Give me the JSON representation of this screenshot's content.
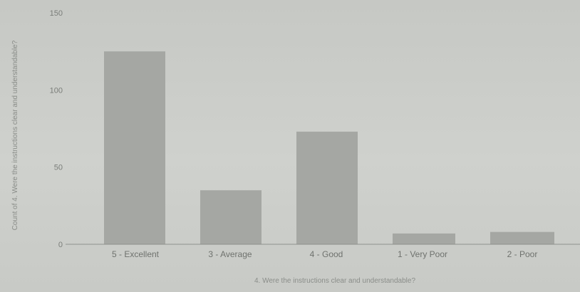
{
  "chart_data": {
    "type": "bar",
    "categories": [
      "5 - Excellent",
      "3 - Average",
      "4 - Good",
      "1 - Very Poor",
      "2 - Poor"
    ],
    "values": [
      125,
      35,
      73,
      7,
      8
    ],
    "ylim": [
      0,
      150
    ],
    "yticks": [
      0,
      50,
      100,
      150
    ],
    "xlabel": "4. Were the instructions clear and understandable?",
    "ylabel": "Count of 4. Were the instructions clear and understandable?",
    "grid": false,
    "colors": {
      "bar": "#a5a7a3",
      "axis": "#8e918d"
    }
  }
}
